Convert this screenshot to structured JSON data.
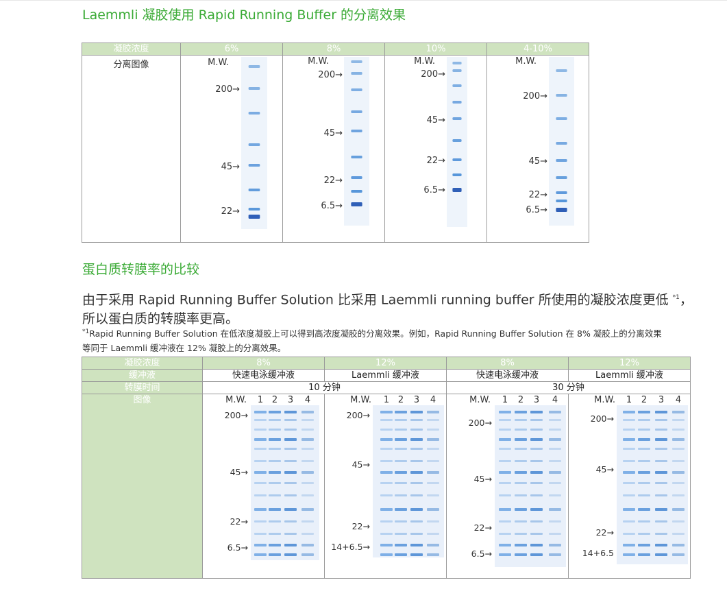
{
  "section1": {
    "title": "Laemmli 凝胶使用 Rapid Running Buffer 的分离效果",
    "header_label": "凝胶浓度",
    "row_label": "分离图像",
    "columns": [
      {
        "label": "6%",
        "mw": "M.W.",
        "markers": [
          "200→",
          "45→",
          "22→"
        ]
      },
      {
        "label": "8%",
        "mw": "M.W.",
        "markers": [
          "200→",
          "45→",
          "22→",
          "6.5→"
        ]
      },
      {
        "label": "10%",
        "mw": "M.W.",
        "markers": [
          "200→",
          "45→",
          "22→",
          "6.5→"
        ]
      },
      {
        "label": "4-10%",
        "mw": "M.W.",
        "markers": [
          "200→",
          "45→",
          "22→",
          "6.5→"
        ]
      }
    ],
    "gel_colors": {
      "band": "#3f86d4",
      "band_dark": "#1a4fb0",
      "bg": "#eef4fb"
    }
  },
  "section2": {
    "title": "蛋白质转膜率的比较",
    "paragraph_part1": "由于采用 Rapid Running Buffer Solution 比采用 Laemmli running buffer 所使用的凝胶浓度更低",
    "paragraph_sup": "*1",
    "paragraph_part2": "，所以蛋白质的转膜率更高。",
    "note_sup": "*1",
    "note_line1": "Rapid Running Buffer Solution 在低浓度凝胶上可以得到高浓度凝胶的分离效果。例如，Rapid Running Buffer Solution 在 8% 凝胶上的分离效果",
    "note_line2": "等同于 Laemmli 缓冲液在 12% 凝胶上的分离效果。",
    "row_labels": {
      "conc": "凝胶浓度",
      "buffer": "缓冲液",
      "time": "转膜时间",
      "image": "图像"
    },
    "concs": [
      "8%",
      "12%",
      "8%",
      "12%"
    ],
    "buffers": [
      "快速电泳缓冲液",
      "Laemmli 缓冲液",
      "快速电泳缓冲液",
      "Laemmli 缓冲液"
    ],
    "times": [
      "10 分钟",
      "30 分钟"
    ],
    "lane_labels": [
      "1",
      "2",
      "3",
      "4"
    ],
    "blots": [
      {
        "mw": "M.W.",
        "markers": [
          "200→",
          "45→",
          "22→",
          "6.5→"
        ]
      },
      {
        "mw": "M.W.",
        "markers": [
          "200→",
          "45→",
          "22→",
          "14+6.5→"
        ]
      },
      {
        "mw": "M.W.",
        "markers": [
          "200→",
          "45→",
          "22→",
          "6.5→"
        ]
      },
      {
        "mw": "M.W.",
        "markers": [
          "200→",
          "45→",
          "22→",
          "14+6.5"
        ]
      }
    ]
  }
}
